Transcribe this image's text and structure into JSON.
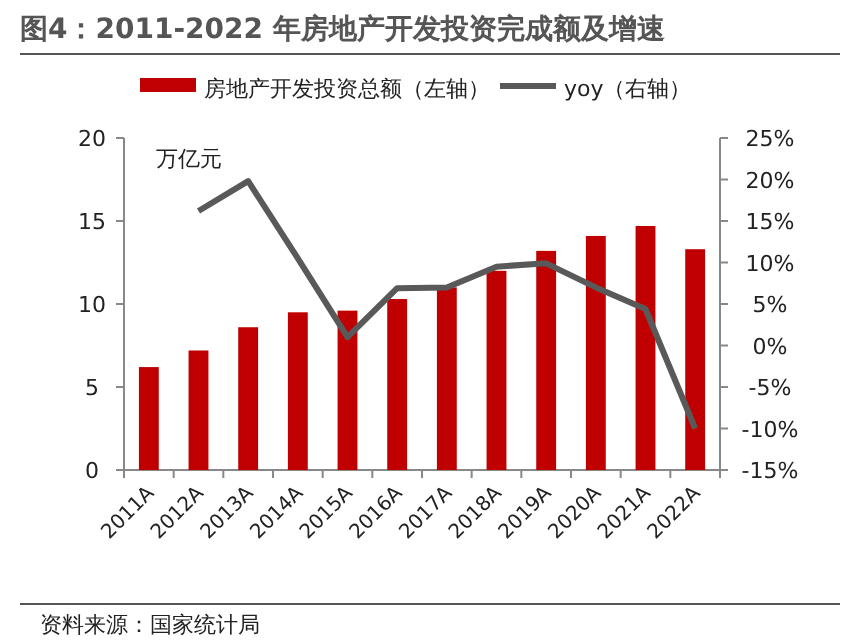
{
  "chart_data": {
    "type": "bar",
    "title": "图4：2011-2022 年房地产开发投资完成额及增速",
    "ylabel": "万亿元",
    "categories": [
      "2011A",
      "2012A",
      "2013A",
      "2014A",
      "2015A",
      "2016A",
      "2017A",
      "2018A",
      "2019A",
      "2020A",
      "2021A",
      "2022A"
    ],
    "series": [
      {
        "name": "房地产开发投资总额（左轴）",
        "color": "#c00000",
        "values": [
          6.2,
          7.2,
          8.6,
          9.5,
          9.6,
          10.3,
          11.0,
          12.0,
          13.2,
          14.1,
          14.7,
          13.3
        ]
      },
      {
        "name": "yoy（右轴）",
        "type": "line",
        "axis": "y2",
        "color": "#595959",
        "values": [
          null,
          16.2,
          19.8,
          10.5,
          1.0,
          6.9,
          7.0,
          9.5,
          9.9,
          7.0,
          4.4,
          -10.0
        ]
      }
    ],
    "ylim": [
      0,
      20
    ],
    "yticks": [
      0,
      5,
      10,
      15,
      20
    ],
    "y2lim": [
      -15,
      25
    ],
    "y2ticks": [
      {
        "value": -15,
        "label": "-15%"
      },
      {
        "value": -10,
        "label": "-10%"
      },
      {
        "value": -5,
        "label": "-5%"
      },
      {
        "value": 0,
        "label": "0%"
      },
      {
        "value": 5,
        "label": "5%"
      },
      {
        "value": 10,
        "label": "10%"
      },
      {
        "value": 15,
        "label": "15%"
      },
      {
        "value": 20,
        "label": "20%"
      },
      {
        "value": 25,
        "label": "25%"
      }
    ],
    "legend": "top",
    "grid": false,
    "marker": "none",
    "line_style": "solid",
    "annotations": [
      "资料来源：国家统计局"
    ]
  }
}
